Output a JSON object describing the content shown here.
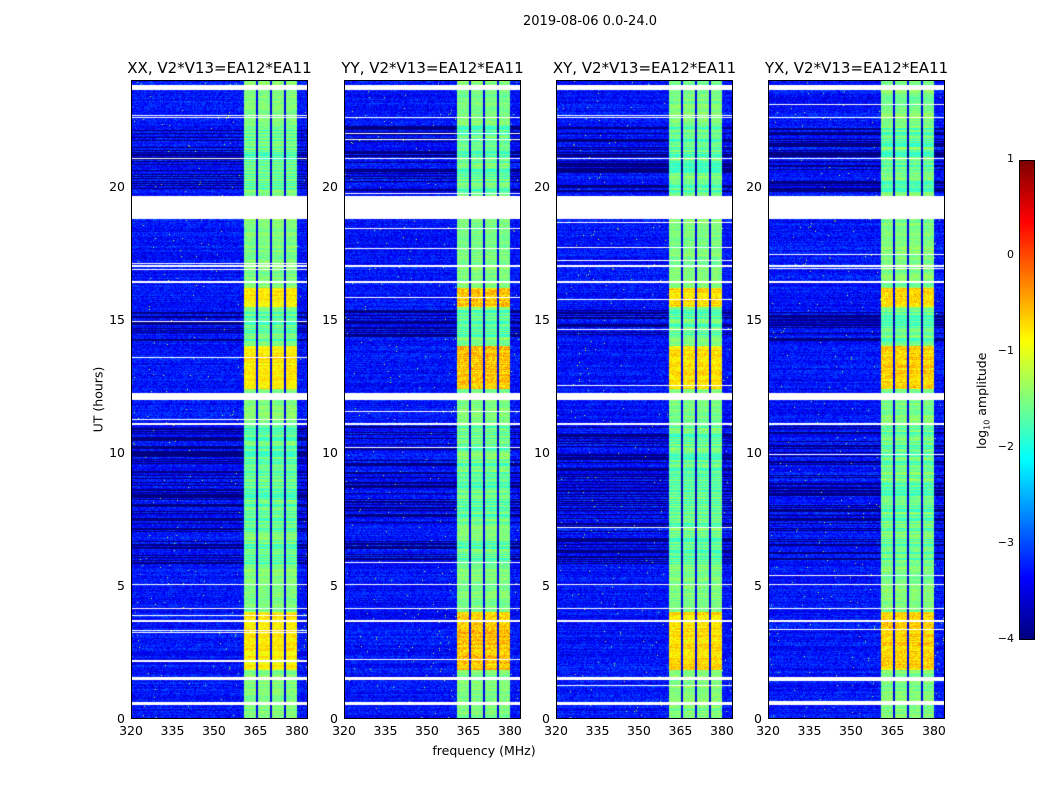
{
  "chart_data": {
    "type": "heatmap",
    "title": "2019-08-06 0.0-24.0",
    "xlabel": "frequency (MHz)",
    "ylabel": "UT (hours)",
    "xlim": [
      320,
      384
    ],
    "ylim": [
      0,
      24
    ],
    "xticks": [
      "320",
      "335",
      "350",
      "365",
      "380"
    ],
    "xtick_values": [
      320,
      335,
      350,
      365,
      380
    ],
    "yticks": [
      "0",
      "5",
      "10",
      "15",
      "20"
    ],
    "ytick_values": [
      0,
      5,
      10,
      15,
      20
    ],
    "panels": [
      {
        "title": "XX, V2*V13=EA12*EA11",
        "bright_boost": 0.2
      },
      {
        "title": "YY, V2*V13=EA12*EA11",
        "bright_boost": 0.6
      },
      {
        "title": "XY, V2*V13=EA12*EA11",
        "bright_boost": 0.35
      },
      {
        "title": "YX, V2*V13=EA12*EA11",
        "bright_boost": 0.45
      }
    ],
    "rfi_band_mhz": [
      361,
      380.5
    ],
    "rfi_subband_gaps_mhz": [
      365.6,
      370.7,
      375.8
    ],
    "background_log_amplitude": -3.3,
    "band_log_amplitude": -1.5,
    "bright_intervals_hours": [
      [
        12.4,
        14.0
      ],
      [
        1.8,
        4.0
      ],
      [
        15.5,
        16.2
      ]
    ],
    "flagged_intervals_hours": [
      [
        23.65,
        23.85
      ],
      [
        18.8,
        19.65
      ],
      [
        12.0,
        12.25
      ],
      [
        0.5,
        0.62
      ],
      [
        1.45,
        1.55
      ],
      [
        3.6,
        3.68
      ],
      [
        4.1,
        4.16
      ],
      [
        5.0,
        5.05
      ],
      [
        11.05,
        11.1
      ],
      [
        16.4,
        16.45
      ],
      [
        17.0,
        17.05
      ],
      [
        22.6,
        22.65
      ],
      [
        21.05,
        21.1
      ]
    ],
    "dropout_ranges_hours": [
      [
        7.0,
        11.0
      ],
      [
        14.2,
        15.4
      ],
      [
        5.8,
        6.8
      ],
      [
        19.8,
        22.3
      ]
    ],
    "colorbar": {
      "label_prefix": "log",
      "label_sub": "10",
      "label_suffix": " amplitude",
      "ticks": [
        "1",
        "0",
        "−1",
        "−2",
        "−3",
        "−4"
      ],
      "tick_values": [
        1,
        0,
        -1,
        -2,
        -3,
        -4
      ],
      "range": [
        -4,
        1
      ],
      "colormap": "jet"
    }
  }
}
